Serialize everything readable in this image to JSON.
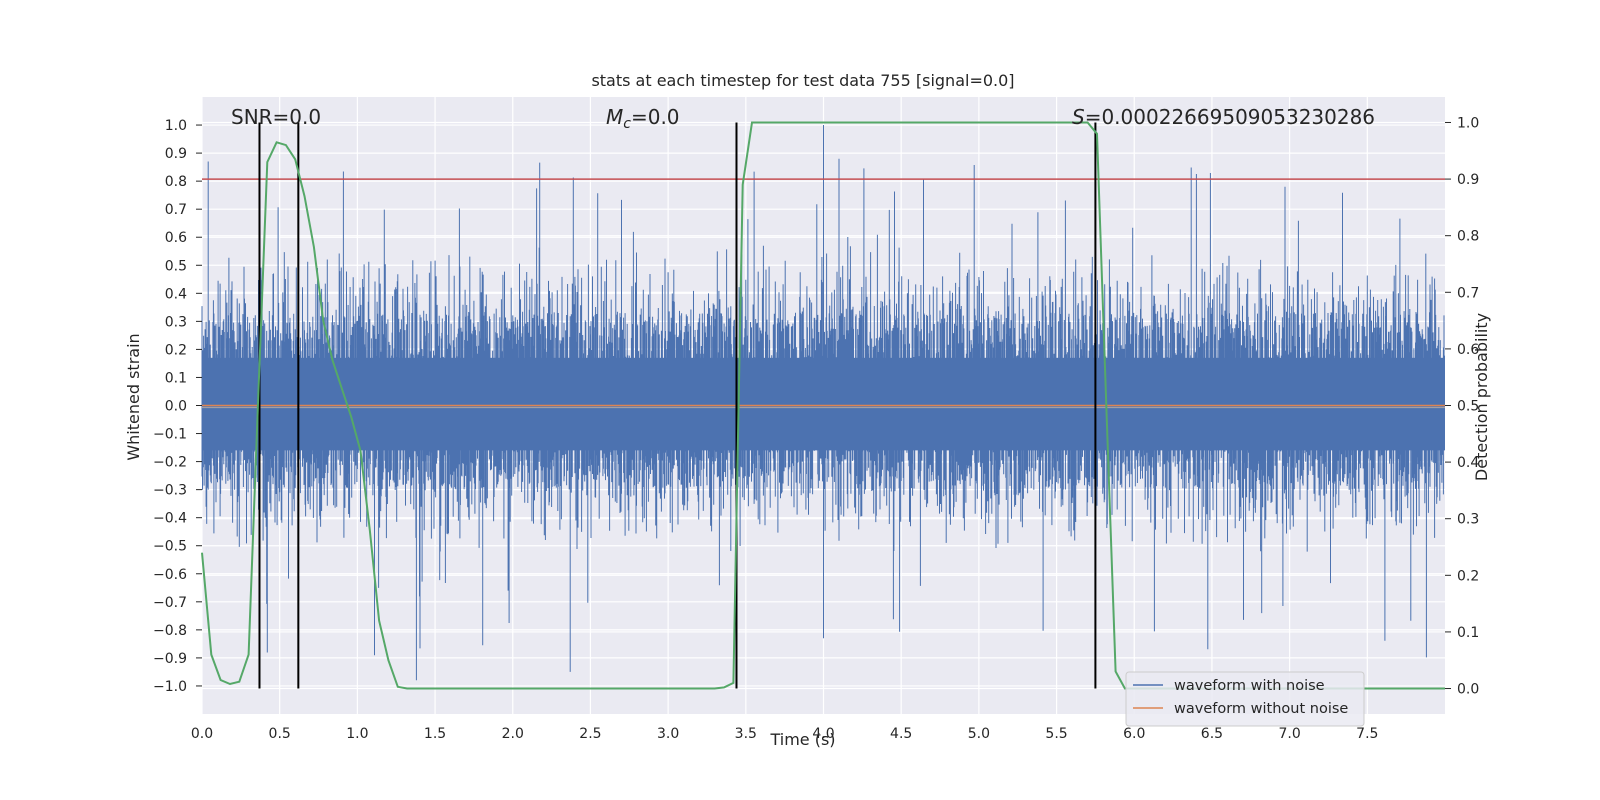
{
  "chart_data": {
    "type": "line",
    "title": "stats at each timestep for test data 755 [signal=0.0]",
    "xlabel": "Time (s)",
    "ylabel": "Whitened strain",
    "y2label": "Detection probability",
    "xlim": [
      0.0,
      8.0
    ],
    "ylim": [
      -1.1,
      1.1
    ],
    "y2lim": [
      -0.045,
      1.045
    ],
    "x_ticks": [
      0.0,
      0.5,
      1.0,
      1.5,
      2.0,
      2.5,
      3.0,
      3.5,
      4.0,
      4.5,
      5.0,
      5.5,
      6.0,
      6.5,
      7.0,
      7.5
    ],
    "x_tick_labels": [
      "0.0",
      "0.5",
      "1.0",
      "1.5",
      "2.0",
      "2.5",
      "3.0",
      "3.5",
      "4.0",
      "4.5",
      "5.0",
      "5.5",
      "6.0",
      "6.5",
      "7.0",
      "7.5"
    ],
    "y_ticks": [
      -1.0,
      -0.9,
      -0.8,
      -0.7,
      -0.6,
      -0.5,
      -0.4,
      -0.3,
      -0.2,
      -0.1,
      0.0,
      0.1,
      0.2,
      0.3,
      0.4,
      0.5,
      0.6,
      0.7,
      0.8,
      0.9,
      1.0
    ],
    "y_tick_labels": [
      "−1.0",
      "−0.9",
      "−0.8",
      "−0.7",
      "−0.6",
      "−0.5",
      "−0.4",
      "−0.3",
      "−0.2",
      "−0.1",
      "0.0",
      "0.1",
      "0.2",
      "0.3",
      "0.4",
      "0.5",
      "0.6",
      "0.7",
      "0.8",
      "0.9",
      "1.0"
    ],
    "y2_ticks": [
      0.0,
      0.1,
      0.2,
      0.3,
      0.4,
      0.5,
      0.6,
      0.7,
      0.8,
      0.9,
      1.0
    ],
    "y2_tick_labels": [
      "0.0",
      "0.1",
      "0.2",
      "0.3",
      "0.4",
      "0.5",
      "0.6",
      "0.7",
      "0.8",
      "0.9",
      "1.0"
    ],
    "grid": true,
    "legend_placement": "lower-right",
    "annotations": {
      "snr": "SNR=0.0",
      "mc_symbol": "M",
      "mc_sub": "c",
      "mc_value": "=0.0",
      "s_symbol": "S",
      "s_value": "=0.0002266950905323028​6"
    },
    "threshold": {
      "value": 0.9,
      "color": "#c44e52"
    },
    "vertical_markers": [
      0.37,
      0.62,
      3.44,
      5.75
    ],
    "series": [
      {
        "name": "waveform with noise",
        "color": "#4c72b0",
        "noise_envelope_seeded": true,
        "peak_positive": 1.0,
        "peak_negative": -1.0
      },
      {
        "name": "waveform without noise",
        "color": "#dd8452",
        "values_constant": 0.0
      },
      {
        "color": "#55a868",
        "axis": "right",
        "x": [
          0.0,
          0.06,
          0.12,
          0.18,
          0.24,
          0.3,
          0.36,
          0.42,
          0.48,
          0.54,
          0.6,
          0.66,
          0.72,
          0.78,
          0.84,
          0.9,
          0.96,
          1.02,
          1.08,
          1.14,
          1.2,
          1.26,
          1.32,
          1.38,
          3.3,
          3.36,
          3.42,
          3.48,
          3.54,
          5.64,
          5.7,
          5.76,
          5.82,
          5.88,
          5.94,
          8.0
        ],
        "values": [
          0.24,
          0.06,
          0.015,
          0.008,
          0.012,
          0.06,
          0.5,
          0.93,
          0.965,
          0.96,
          0.935,
          0.87,
          0.78,
          0.65,
          0.58,
          0.53,
          0.48,
          0.42,
          0.28,
          0.12,
          0.05,
          0.003,
          0.0,
          0.0,
          0.0,
          0.002,
          0.01,
          0.89,
          1.0,
          1.0,
          1.0,
          0.98,
          0.5,
          0.03,
          0.0,
          0.0
        ]
      }
    ]
  }
}
